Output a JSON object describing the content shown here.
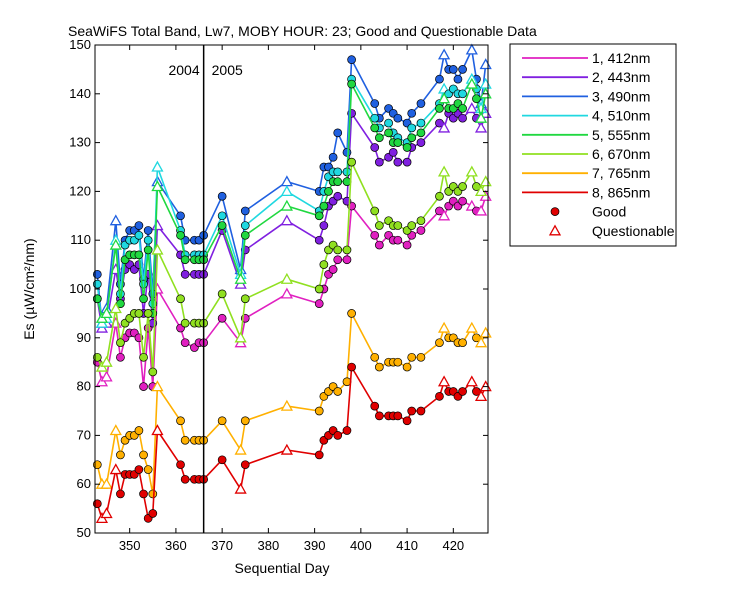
{
  "chart_data": {
    "type": "line",
    "title": "SeaWiFS Total Band,  Lw7, MOBY HOUR: 23;  Good and Questionable Data",
    "xlabel": "Sequential Day",
    "ylabel": "Es (µW/cm²/nm)",
    "xlim": [
      342.5,
      427.5
    ],
    "ylim": [
      50,
      150
    ],
    "xticks": [
      350,
      360,
      370,
      380,
      390,
      400,
      410,
      420
    ],
    "yticks": [
      50,
      60,
      70,
      80,
      90,
      100,
      110,
      120,
      130,
      140,
      150
    ],
    "grid": false,
    "legend_position": "outside-right",
    "year_divider": {
      "x": 366,
      "left_label": "2004",
      "right_label": "2005"
    },
    "x": [
      343,
      344,
      345,
      347,
      348,
      349,
      350,
      351,
      352,
      353,
      354,
      355,
      356,
      361,
      362,
      364,
      365,
      366,
      370,
      374,
      375,
      384,
      391,
      392,
      393,
      394,
      395,
      397,
      398,
      403,
      404,
      406,
      407,
      408,
      410,
      411,
      413,
      417,
      418,
      419,
      420,
      421,
      422,
      424,
      425,
      426,
      427
    ],
    "questionable_x": [
      344,
      345,
      347,
      356,
      374,
      384,
      418,
      424,
      426,
      427
    ],
    "series": [
      {
        "name": "1, 412nm",
        "color": "#e020c0",
        "values": [
          85,
          81,
          82,
          93,
          86,
          90,
          91,
          91,
          90,
          80,
          92,
          80,
          100,
          92,
          89,
          88,
          89,
          89,
          94,
          89,
          94,
          99,
          97,
          100,
          103,
          104,
          106,
          106,
          117,
          111,
          109,
          111,
          110,
          110,
          109,
          111,
          112,
          116,
          115,
          117,
          118,
          117,
          118,
          117,
          116,
          116,
          119
        ]
      },
      {
        "name": "2, 443nm",
        "color": "#8020e0",
        "values": [
          98,
          92,
          93,
          104,
          98,
          104,
          105,
          104,
          105,
          95,
          103,
          93,
          113,
          107,
          103,
          103,
          103,
          103,
          112,
          101,
          108,
          114,
          110,
          113,
          117,
          118,
          119,
          118,
          136,
          129,
          126,
          127,
          128,
          126,
          126,
          129,
          130,
          134,
          133,
          136,
          135,
          136,
          135,
          137,
          135,
          133,
          136
        ]
      },
      {
        "name": "3, 490nm",
        "color": "#2060e0",
        "values": [
          103,
          93,
          96,
          114,
          101,
          110,
          112,
          112,
          113,
          102,
          112,
          99,
          122,
          115,
          110,
          110,
          110,
          111,
          119,
          104,
          116,
          122,
          120,
          125,
          125,
          127,
          132,
          128,
          147,
          138,
          135,
          137,
          136,
          135,
          134,
          136,
          138,
          143,
          148,
          145,
          145,
          143,
          145,
          149,
          143,
          138,
          146
        ]
      },
      {
        "name": "4, 510nm",
        "color": "#20d8e0",
        "values": [
          101,
          93,
          94,
          110,
          99,
          109,
          110,
          110,
          111,
          101,
          110,
          97,
          125,
          112,
          107,
          107,
          107,
          107,
          115,
          103,
          113,
          120,
          116,
          120,
          123,
          124,
          124,
          124,
          143,
          135,
          133,
          134,
          132,
          131,
          130,
          133,
          134,
          138,
          141,
          140,
          141,
          140,
          140,
          143,
          141,
          137,
          142
        ]
      },
      {
        "name": "5, 555nm",
        "color": "#20d840",
        "values": [
          98,
          94,
          95,
          109,
          97,
          106,
          107,
          107,
          107,
          98,
          108,
          95,
          121,
          111,
          106,
          106,
          106,
          106,
          113,
          102,
          111,
          117,
          115,
          117,
          120,
          122,
          122,
          122,
          142,
          133,
          131,
          132,
          130,
          130,
          129,
          131,
          132,
          137,
          139,
          137,
          137,
          138,
          137,
          142,
          139,
          135,
          140
        ]
      },
      {
        "name": "6, 670nm",
        "color": "#90e020",
        "values": [
          86,
          84,
          85,
          96,
          89,
          93,
          94,
          95,
          95,
          86,
          95,
          83,
          108,
          98,
          93,
          93,
          93,
          93,
          99,
          90,
          98,
          102,
          100,
          105,
          108,
          109,
          108,
          108,
          126,
          116,
          113,
          114,
          113,
          113,
          112,
          113,
          114,
          119,
          124,
          120,
          121,
          120,
          121,
          124,
          121,
          120,
          122
        ]
      },
      {
        "name": "7, 765nm",
        "color": "#ffb000",
        "values": [
          64,
          60,
          60,
          71,
          66,
          69,
          70,
          70,
          71,
          66,
          63,
          58,
          80,
          73,
          69,
          69,
          69,
          69,
          73,
          67,
          73,
          76,
          75,
          78,
          79,
          80,
          79,
          81,
          95,
          86,
          84,
          85,
          85,
          85,
          84,
          86,
          86,
          89,
          92,
          90,
          90,
          89,
          89,
          92,
          90,
          89,
          91
        ]
      },
      {
        "name": "8, 865nm",
        "color": "#e00000",
        "values": [
          56,
          53,
          54,
          63,
          58,
          62,
          62,
          62,
          63,
          58,
          53,
          54,
          71,
          64,
          61,
          61,
          61,
          61,
          65,
          59,
          64,
          67,
          66,
          69,
          70,
          71,
          70,
          71,
          84,
          76,
          74,
          74,
          74,
          74,
          73,
          75,
          75,
          78,
          81,
          79,
          79,
          78,
          79,
          81,
          79,
          78,
          80
        ]
      }
    ],
    "marker_legend": [
      {
        "label": "Good",
        "marker": "filled-circle"
      },
      {
        "label": "Questionable",
        "marker": "open-triangle"
      }
    ]
  }
}
